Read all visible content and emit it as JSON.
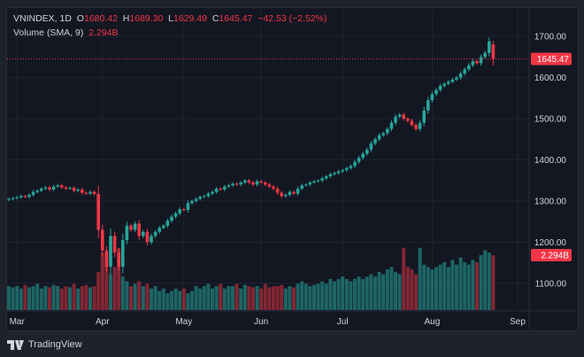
{
  "legend": {
    "symbol": "VNINDEX, 1D",
    "o_label": "O",
    "o": "1680.42",
    "h_label": "H",
    "h": "1689.30",
    "l_label": "L",
    "l": "1629.49",
    "c_label": "C",
    "c": "1645.47",
    "change": "−42.53 (−2.52%)",
    "volume_label": "Volume (SMA, 9)",
    "volume_value": "2.294B"
  },
  "brand": "TradingView",
  "colors": {
    "up": "#26a69a",
    "down": "#f23645",
    "bg": "#131722",
    "text": "#d1d4dc"
  },
  "chart_data": {
    "type": "candlestick",
    "title": "VNINDEX, 1D",
    "y_ticks": [
      "1700.00",
      "1600.00",
      "1500.00",
      "1400.00",
      "1300.00",
      "1200.00",
      "1100.00"
    ],
    "y_tick_values": [
      1700,
      1600,
      1500,
      1400,
      1300,
      1200,
      1100
    ],
    "ylim": [
      1035,
      1767
    ],
    "x_ticks": [
      {
        "label": "Mar",
        "index": 2
      },
      {
        "label": "Apr",
        "index": 23
      },
      {
        "label": "May",
        "index": 43
      },
      {
        "label": "Jun",
        "index": 62
      },
      {
        "label": "Jul",
        "index": 82
      },
      {
        "label": "Aug",
        "index": 104
      },
      {
        "label": "Sep",
        "index": 125
      }
    ],
    "last_price": "1645.47",
    "last_volume": "2.294B",
    "closes": [
      1305,
      1307,
      1309,
      1312,
      1310,
      1315,
      1322,
      1325,
      1330,
      1333,
      1328,
      1335,
      1338,
      1333,
      1330,
      1332,
      1325,
      1328,
      1320,
      1318,
      1322,
      1317,
      1230,
      1180,
      1140,
      1215,
      1175,
      1140,
      1205,
      1240,
      1230,
      1245,
      1215,
      1225,
      1200,
      1215,
      1225,
      1235,
      1240,
      1252,
      1262,
      1270,
      1280,
      1278,
      1295,
      1300,
      1305,
      1310,
      1312,
      1318,
      1322,
      1330,
      1328,
      1335,
      1338,
      1342,
      1340,
      1345,
      1350,
      1345,
      1340,
      1348,
      1345,
      1340,
      1335,
      1330,
      1320,
      1312,
      1315,
      1322,
      1318,
      1330,
      1338,
      1340,
      1345,
      1348,
      1350,
      1355,
      1360,
      1365,
      1368,
      1372,
      1375,
      1380,
      1385,
      1395,
      1405,
      1415,
      1425,
      1440,
      1450,
      1460,
      1465,
      1475,
      1490,
      1505,
      1510,
      1500,
      1495,
      1485,
      1475,
      1490,
      1520,
      1545,
      1560,
      1570,
      1580,
      1585,
      1590,
      1595,
      1600,
      1610,
      1620,
      1630,
      1640,
      1635,
      1650,
      1660,
      1688,
      1645.47
    ],
    "last_ohlc": {
      "o": 1680.42,
      "h": 1689.3,
      "l": 1629.49,
      "c": 1645.47
    },
    "volumes_billion": [
      1.0,
      0.95,
      1.0,
      0.9,
      1.05,
      0.95,
      1.0,
      1.1,
      0.9,
      1.0,
      0.95,
      1.05,
      1.0,
      0.9,
      1.0,
      0.95,
      1.1,
      0.9,
      1.0,
      1.05,
      0.95,
      1.0,
      1.6,
      2.4,
      2.0,
      1.5,
      1.8,
      2.6,
      1.4,
      1.2,
      1.0,
      1.1,
      1.2,
      1.0,
      1.1,
      0.9,
      1.0,
      0.8,
      0.9,
      0.7,
      0.8,
      0.9,
      0.8,
      0.9,
      0.7,
      0.8,
      1.0,
      0.9,
      1.0,
      1.1,
      0.9,
      1.0,
      1.1,
      0.9,
      1.0,
      1.0,
      1.1,
      0.9,
      1.05,
      1.0,
      0.95,
      1.0,
      0.9,
      1.1,
      0.95,
      1.0,
      1.0,
      1.05,
      0.9,
      1.0,
      0.95,
      1.1,
      1.2,
      1.1,
      1.0,
      1.05,
      1.1,
      1.2,
      1.1,
      1.3,
      1.2,
      1.3,
      1.4,
      1.3,
      1.2,
      1.3,
      1.4,
      1.3,
      1.4,
      1.5,
      1.4,
      1.6,
      1.5,
      1.7,
      1.8,
      1.6,
      1.5,
      2.6,
      1.8,
      1.7,
      1.5,
      2.6,
      1.9,
      1.8,
      1.7,
      1.8,
      1.9,
      2.0,
      1.8,
      2.1,
      1.9,
      2.2,
      2.0,
      1.9,
      2.1,
      2.0,
      2.3,
      2.5,
      2.4,
      2.294
    ]
  }
}
